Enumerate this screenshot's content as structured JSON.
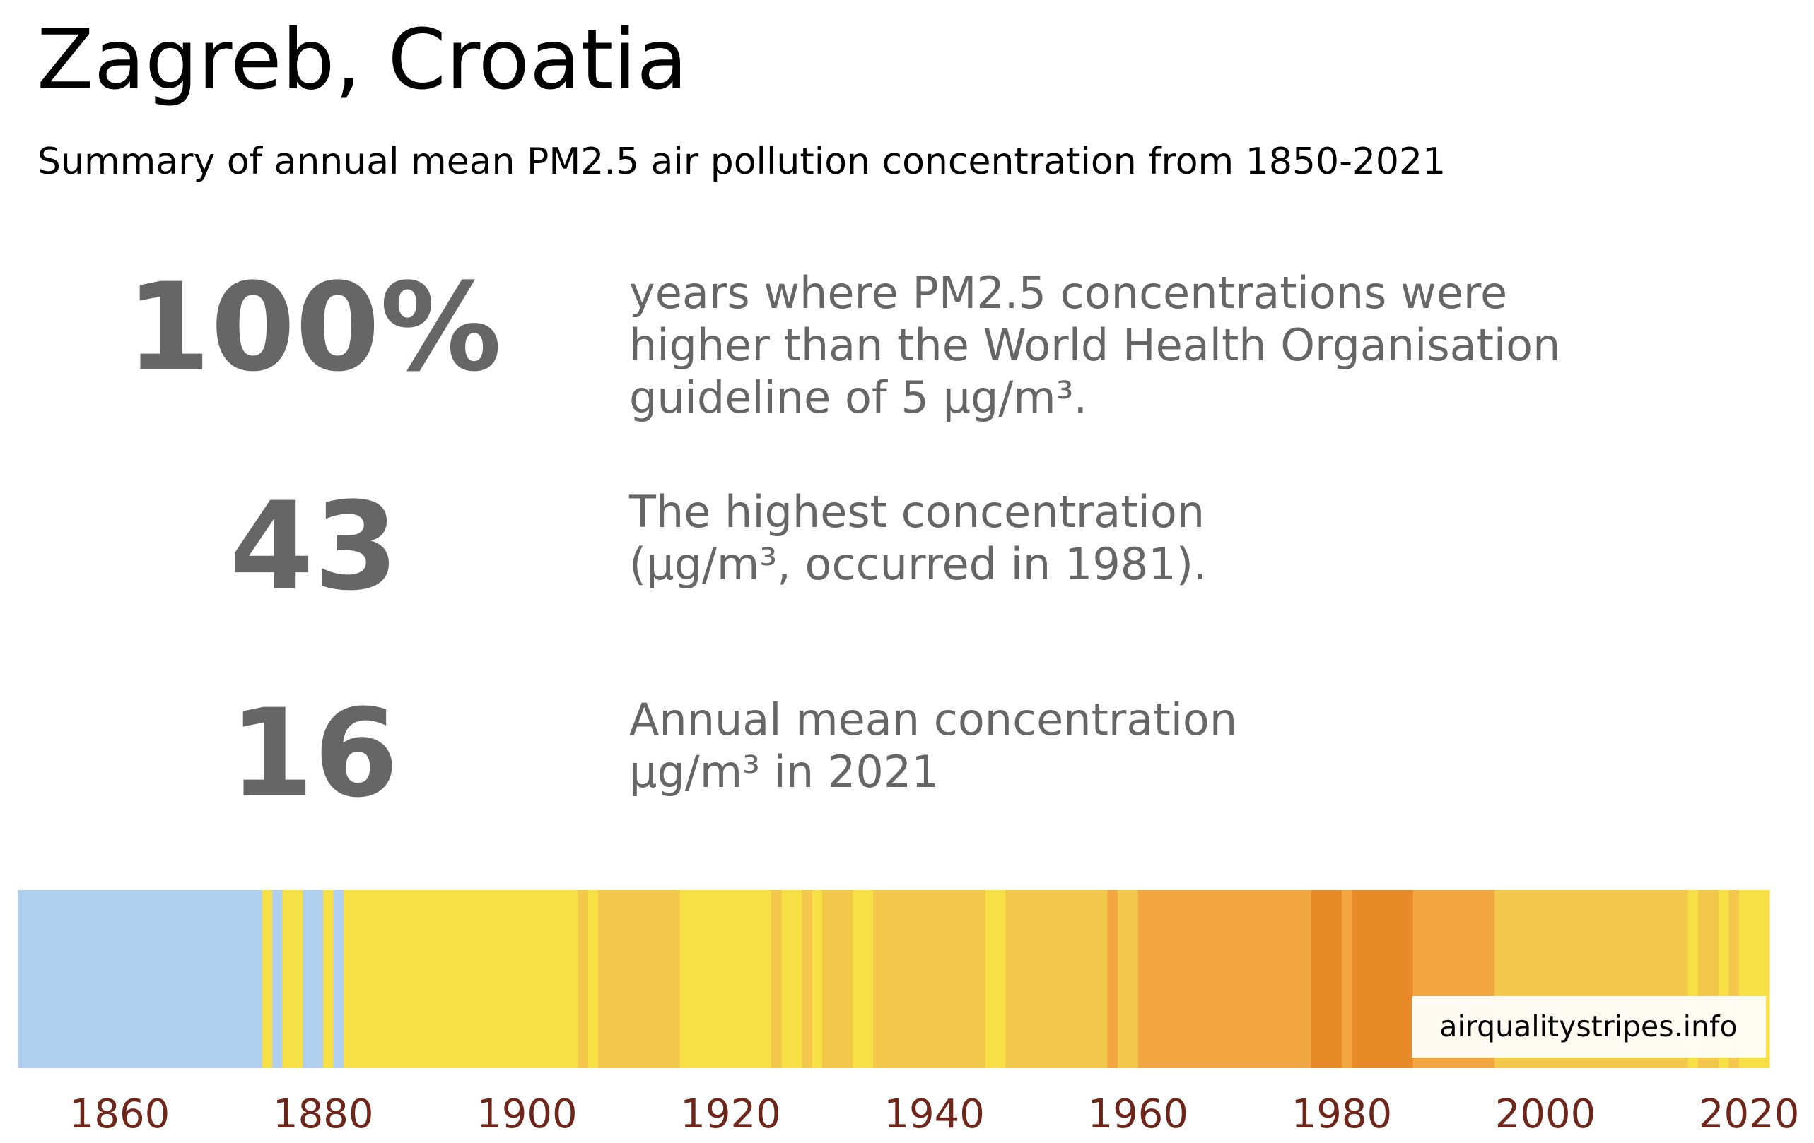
{
  "header": {
    "title": "Zagreb, Croatia",
    "subtitle": "Summary of annual mean PM2.5 air pollution concentration from 1850-2021"
  },
  "stats": [
    {
      "value": "100%",
      "lines": [
        "years where PM2.5 concentrations were",
        "higher than the World Health Organisation",
        "guideline of 5 μg/m³."
      ]
    },
    {
      "value": "43",
      "lines": [
        "The highest concentration",
        "(μg/m³, occurred in 1981)."
      ]
    },
    {
      "value": "16",
      "lines": [
        "Annual mean concentration",
        "μg/m³ in 2021"
      ]
    }
  ],
  "watermark": "airqualitystripes.info",
  "colors": {
    "text_gray": "#666666",
    "tick_label": "#6e261a",
    "low": "#b0cfee",
    "medium": "#f7df46",
    "medium_high": "#f2c74a",
    "high": "#f1a641",
    "very_high": "#e98a28"
  },
  "chart_data": {
    "type": "heatmap",
    "title": "Zagreb, Croatia",
    "xlim": [
      1850,
      2022
    ],
    "xticks": [
      1860,
      1880,
      1900,
      1920,
      1940,
      1960,
      1980,
      2000,
      2020
    ],
    "legend": "none",
    "grid": false,
    "color_bands": [
      {
        "start": 1850,
        "end": 1873,
        "band": "low"
      },
      {
        "start": 1874,
        "end": 1874,
        "band": "medium"
      },
      {
        "start": 1875,
        "end": 1875,
        "band": "low"
      },
      {
        "start": 1876,
        "end": 1877,
        "band": "medium"
      },
      {
        "start": 1878,
        "end": 1879,
        "band": "low"
      },
      {
        "start": 1880,
        "end": 1880,
        "band": "medium"
      },
      {
        "start": 1881,
        "end": 1881,
        "band": "low"
      },
      {
        "start": 1882,
        "end": 1904,
        "band": "medium"
      },
      {
        "start": 1905,
        "end": 1905,
        "band": "medium_high"
      },
      {
        "start": 1906,
        "end": 1906,
        "band": "medium"
      },
      {
        "start": 1907,
        "end": 1914,
        "band": "medium_high"
      },
      {
        "start": 1915,
        "end": 1923,
        "band": "medium"
      },
      {
        "start": 1924,
        "end": 1924,
        "band": "medium_high"
      },
      {
        "start": 1925,
        "end": 1926,
        "band": "medium"
      },
      {
        "start": 1927,
        "end": 1927,
        "band": "medium_high"
      },
      {
        "start": 1928,
        "end": 1928,
        "band": "medium"
      },
      {
        "start": 1929,
        "end": 1931,
        "band": "medium_high"
      },
      {
        "start": 1932,
        "end": 1933,
        "band": "medium"
      },
      {
        "start": 1934,
        "end": 1944,
        "band": "medium_high"
      },
      {
        "start": 1945,
        "end": 1946,
        "band": "medium"
      },
      {
        "start": 1947,
        "end": 1956,
        "band": "medium_high"
      },
      {
        "start": 1957,
        "end": 1957,
        "band": "high"
      },
      {
        "start": 1958,
        "end": 1959,
        "band": "medium_high"
      },
      {
        "start": 1960,
        "end": 1976,
        "band": "high"
      },
      {
        "start": 1977,
        "end": 1979,
        "band": "very_high"
      },
      {
        "start": 1980,
        "end": 1980,
        "band": "high"
      },
      {
        "start": 1981,
        "end": 1986,
        "band": "very_high"
      },
      {
        "start": 1987,
        "end": 1994,
        "band": "high"
      },
      {
        "start": 1995,
        "end": 2013,
        "band": "medium_high"
      },
      {
        "start": 2014,
        "end": 2014,
        "band": "medium"
      },
      {
        "start": 2015,
        "end": 2016,
        "band": "medium_high"
      },
      {
        "start": 2017,
        "end": 2017,
        "band": "medium"
      },
      {
        "start": 2018,
        "end": 2018,
        "band": "medium_high"
      },
      {
        "start": 2019,
        "end": 2021,
        "band": "medium"
      }
    ]
  }
}
